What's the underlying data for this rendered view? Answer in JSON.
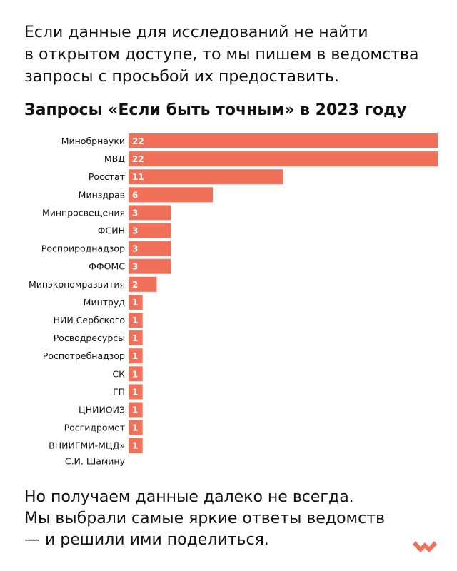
{
  "intro": {
    "lines": [
      "Если данные для исследований не найти",
      "в открытом доступе, то мы пишем в ведомства",
      "запросы с просьбой их предоставить."
    ]
  },
  "outro": {
    "lines": [
      "Но получаем данные далеко не всегда.",
      "Мы выбрали самые яркие ответы ведомств",
      "— и решили ими поделиться."
    ]
  },
  "colors": {
    "bar": "#f0705a",
    "logo": "#f0705a",
    "text": "#111111"
  },
  "icons": {
    "logo": "heart-logo-icon"
  },
  "chart_data": {
    "type": "bar",
    "orientation": "horizontal",
    "title": "Запросы «Если быть точным» в 2023 году",
    "xlabel": "",
    "ylabel": "",
    "xlim": [
      0,
      22
    ],
    "grid": false,
    "legend": "none",
    "categories": [
      "Минобрнауки",
      "МВД",
      "Росстат",
      "Минздрав",
      "Минпросвещения",
      "ФСИН",
      "Росприроднадзор",
      "ФФОМС",
      "Минэкономразвития",
      "Минтруд",
      "НИИ Сербского",
      "Росводресурсы",
      "Роспотребнадзор",
      "СК",
      "ГП",
      "ЦНИИОИЗ",
      "Росгидромет",
      "ВНИИГМИ-МЦД» С.И. Шамину"
    ],
    "category_lines": [
      [
        "Минобрнауки"
      ],
      [
        "МВД"
      ],
      [
        "Росстат"
      ],
      [
        "Минздрав"
      ],
      [
        "Минпросвещения"
      ],
      [
        "ФСИН"
      ],
      [
        "Росприроднадзор"
      ],
      [
        "ФФОМС"
      ],
      [
        "Минэкономразвития"
      ],
      [
        "Минтруд"
      ],
      [
        "НИИ Сербского"
      ],
      [
        "Росводресурсы"
      ],
      [
        "Роспотребнадзор"
      ],
      [
        "СК"
      ],
      [
        "ГП"
      ],
      [
        "ЦНИИОИЗ"
      ],
      [
        "Росгидромет"
      ],
      [
        "ВНИИГМИ-МЦД»",
        "С.И. Шамину"
      ]
    ],
    "values": [
      22,
      22,
      11,
      6,
      3,
      3,
      3,
      3,
      2,
      1,
      1,
      1,
      1,
      1,
      1,
      1,
      1,
      1
    ]
  }
}
